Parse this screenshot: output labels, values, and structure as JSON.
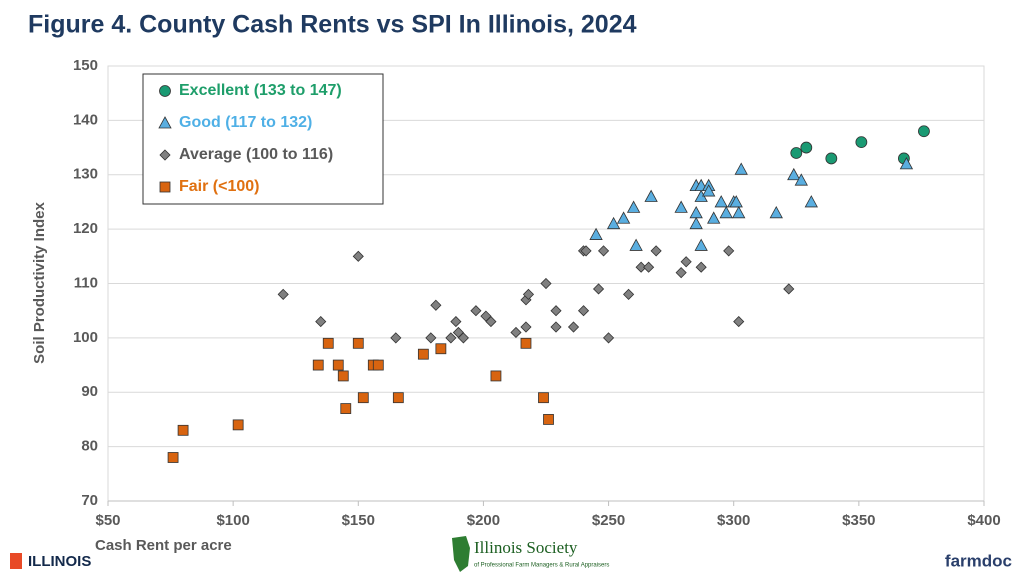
{
  "chart_data": {
    "type": "scatter",
    "title": "Figure 4. County Cash Rents vs SPI In Illinois, 2024",
    "x_label": "Cash Rent per acre",
    "y_label": "Soil Productivity Index",
    "xlim": [
      50,
      400
    ],
    "ylim": [
      70,
      150
    ],
    "xticks": [
      {
        "value": 50,
        "label": "$50"
      },
      {
        "value": 100,
        "label": "$100"
      },
      {
        "value": 150,
        "label": "$150"
      },
      {
        "value": 200,
        "label": "$200"
      },
      {
        "value": 250,
        "label": "$250"
      },
      {
        "value": 300,
        "label": "$300"
      },
      {
        "value": 350,
        "label": "$350"
      },
      {
        "value": 400,
        "label": "$400"
      }
    ],
    "yticks": [
      70,
      80,
      90,
      100,
      110,
      120,
      130,
      140,
      150
    ],
    "grid": true,
    "legend": "top-left",
    "series": [
      {
        "name": "Excellent (133 to 147)",
        "color": "#1a9a73",
        "text_color": "#1e9e6a",
        "marker": "circle",
        "x": [
          325,
          329,
          339,
          351,
          368,
          376
        ],
        "y": [
          134,
          135,
          133,
          136,
          133,
          138
        ]
      },
      {
        "name": "Good (117 to 132)",
        "color": "#5aaee0",
        "text_color": "#4fb0e6",
        "marker": "triangle",
        "x": [
          245,
          252,
          256,
          260,
          261,
          267,
          279,
          285,
          285,
          285,
          287,
          287,
          287,
          290,
          290,
          292,
          295,
          297,
          300,
          301,
          302,
          303,
          317,
          324,
          327,
          331,
          369
        ],
        "y": [
          119,
          121,
          122,
          124,
          117,
          126,
          124,
          128,
          123,
          121,
          126,
          117,
          128,
          128,
          127,
          122,
          125,
          123,
          125,
          125,
          123,
          131,
          123,
          130,
          129,
          125,
          132
        ]
      },
      {
        "name": "Average (100 to 116)",
        "color": "#808080",
        "text_color": "#595959",
        "marker": "diamond",
        "x": [
          120,
          135,
          150,
          165,
          179,
          181,
          187,
          189,
          190,
          192,
          197,
          201,
          203,
          213,
          217,
          217,
          218,
          225,
          229,
          229,
          236,
          240,
          240,
          241,
          246,
          248,
          250,
          258,
          263,
          266,
          269,
          279,
          281,
          287,
          298,
          302,
          322
        ],
        "y": [
          108,
          103,
          115,
          100,
          100,
          106,
          100,
          103,
          101,
          100,
          105,
          104,
          103,
          101,
          102,
          107,
          108,
          110,
          105,
          102,
          102,
          105,
          116,
          116,
          109,
          116,
          100,
          108,
          113,
          113,
          116,
          112,
          114,
          113,
          116,
          103,
          109
        ]
      },
      {
        "name": "Fair (<100)",
        "color": "#d86410",
        "text_color": "#e07010",
        "marker": "square",
        "x": [
          76,
          80,
          102,
          134,
          138,
          142,
          144,
          145,
          150,
          152,
          156,
          158,
          166,
          176,
          183,
          205,
          217,
          224,
          226
        ],
        "y": [
          78,
          83,
          84,
          95,
          99,
          95,
          93,
          87,
          99,
          89,
          95,
          95,
          89,
          97,
          98,
          93,
          99,
          89,
          85
        ]
      }
    ]
  },
  "footer": {
    "left": "ILLINOIS",
    "center_title": "Illinois Society",
    "center_subtitle": "of Professional Farm Managers & Rural Appraisers",
    "right": "farmdoc"
  }
}
